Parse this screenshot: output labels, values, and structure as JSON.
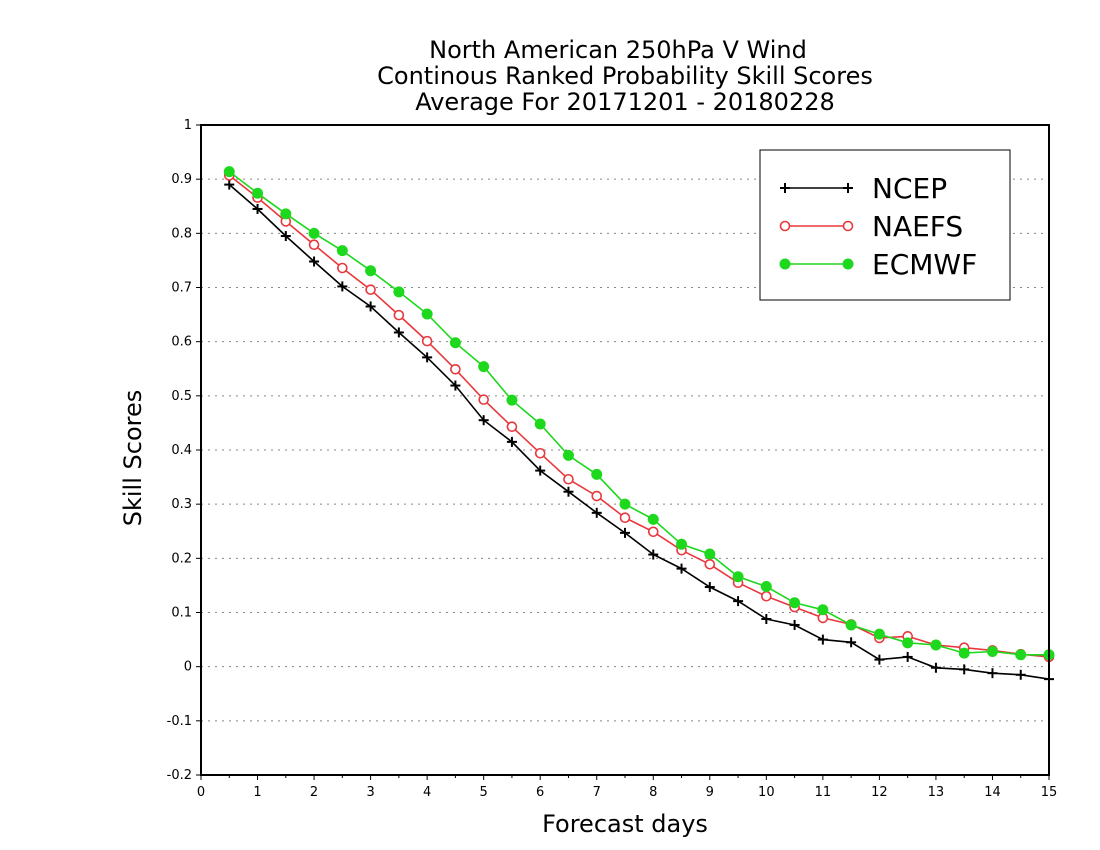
{
  "chart_data": {
    "type": "line",
    "title_lines": [
      "North American 250hPa V Wind",
      "Continous Ranked Probability Skill Scores",
      "Average For 20171201 - 20180228"
    ],
    "xlabel": "Forecast days",
    "ylabel": "Skill Scores",
    "xlim": [
      0,
      15
    ],
    "ylim": [
      -0.2,
      1
    ],
    "xticks": [
      "0",
      "1",
      "2",
      "3",
      "4",
      "5",
      "6",
      "7",
      "8",
      "9",
      "10",
      "11",
      "12",
      "13",
      "14",
      "15"
    ],
    "yticks": [
      "-0.2",
      "-0.1",
      "0",
      "0.1",
      "0.2",
      "0.3",
      "0.4",
      "0.5",
      "0.6",
      "0.7",
      "0.8",
      "0.9",
      "1"
    ],
    "grid": "horizontal dotted",
    "legend_position": "top-right",
    "x": [
      0.5,
      1,
      1.5,
      2,
      2.5,
      3,
      3.5,
      4,
      4.5,
      5,
      5.5,
      6,
      6.5,
      7,
      7.5,
      8,
      8.5,
      9,
      9.5,
      10,
      10.5,
      11,
      11.5,
      12,
      12.5,
      13,
      13.5,
      14,
      14.5,
      15
    ],
    "series": [
      {
        "name": "NCEP",
        "color": "#000000",
        "marker": "plus",
        "values": [
          0.89,
          0.845,
          0.795,
          0.748,
          0.702,
          0.665,
          0.617,
          0.571,
          0.519,
          0.455,
          0.415,
          0.362,
          0.323,
          0.284,
          0.247,
          0.207,
          0.181,
          0.147,
          0.121,
          0.088,
          0.077,
          0.05,
          0.045,
          0.013,
          0.018,
          -0.002,
          -0.005,
          -0.012,
          -0.015,
          -0.023
        ]
      },
      {
        "name": "NAEFS",
        "color": "#e8383d",
        "marker": "open-circle",
        "values": [
          0.907,
          0.866,
          0.822,
          0.779,
          0.736,
          0.696,
          0.649,
          0.601,
          0.549,
          0.493,
          0.443,
          0.394,
          0.346,
          0.315,
          0.275,
          0.249,
          0.215,
          0.189,
          0.155,
          0.13,
          0.11,
          0.09,
          0.078,
          0.053,
          0.056,
          0.04,
          0.035,
          0.03,
          0.023,
          0.018
        ]
      },
      {
        "name": "ECMWF",
        "color": "#1ed81e",
        "marker": "filled-circle",
        "values": [
          0.914,
          0.874,
          0.836,
          0.8,
          0.768,
          0.731,
          0.692,
          0.651,
          0.598,
          0.554,
          0.492,
          0.448,
          0.39,
          0.355,
          0.3,
          0.272,
          0.226,
          0.208,
          0.166,
          0.148,
          0.118,
          0.105,
          0.077,
          0.06,
          0.044,
          0.04,
          0.025,
          0.028,
          0.022,
          0.022
        ]
      }
    ]
  }
}
